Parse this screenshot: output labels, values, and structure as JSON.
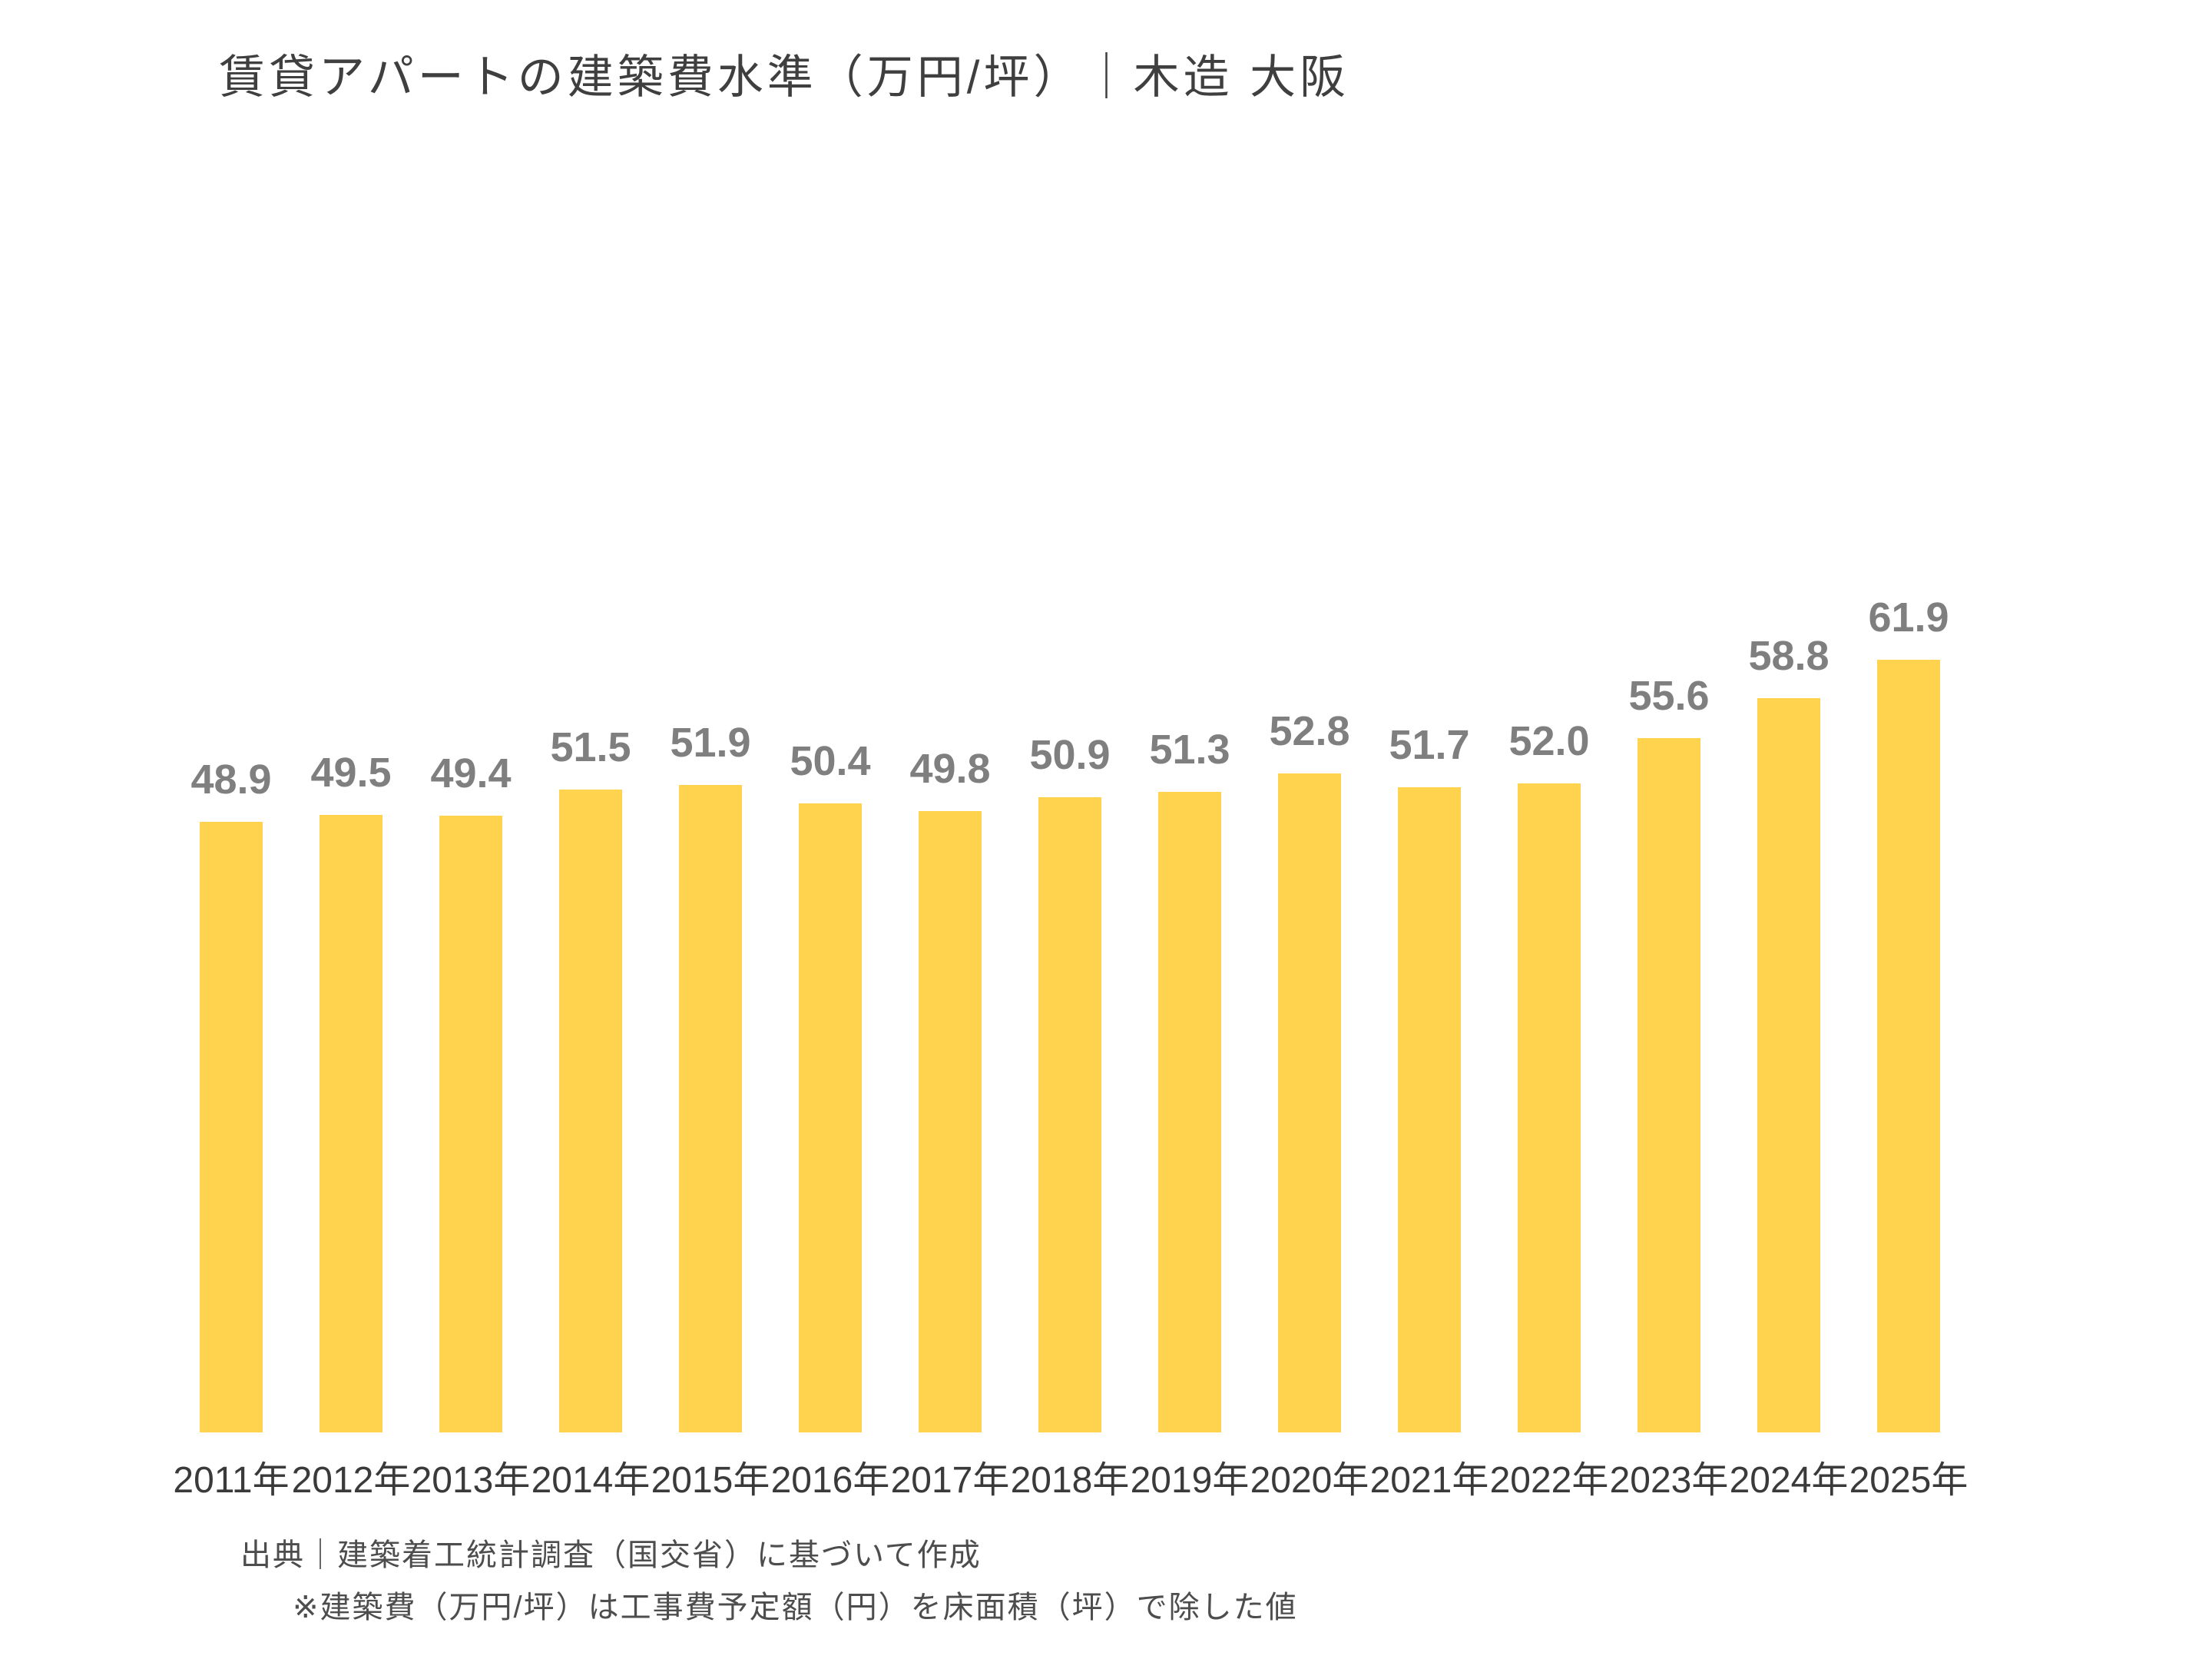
{
  "title": "賃貸アパートの建築費水準（万円/坪）｜木造 大阪",
  "chart_data": {
    "type": "bar",
    "title": "賃貸アパートの建築費水準（万円/坪）｜木造 大阪",
    "categories": [
      "2011年",
      "2012年",
      "2013年",
      "2014年",
      "2015年",
      "2016年",
      "2017年",
      "2018年",
      "2019年",
      "2020年",
      "2021年",
      "2022年",
      "2023年",
      "2024年",
      "2025年"
    ],
    "values": [
      48.9,
      49.5,
      49.4,
      51.5,
      51.9,
      50.4,
      49.8,
      50.9,
      51.3,
      52.8,
      51.7,
      52.0,
      55.6,
      58.8,
      61.9
    ],
    "value_label_decimals": 1,
    "xlabel": "",
    "ylabel": "",
    "ylim": [
      0,
      70
    ],
    "grid": false,
    "legend": false,
    "y_axis_shown": false,
    "value_labels_shown": true,
    "bar_color": "#FFD34D",
    "value_label_color": "#7F7F7F",
    "tick_label_color": "#3A3A3A"
  },
  "footer": {
    "source_line": "出典｜建築着工統計調査（国交省）に基づいて作成",
    "note_line": "※建築費（万円/坪）は工事費予定額（円）を床面積（坪）で除した値"
  }
}
